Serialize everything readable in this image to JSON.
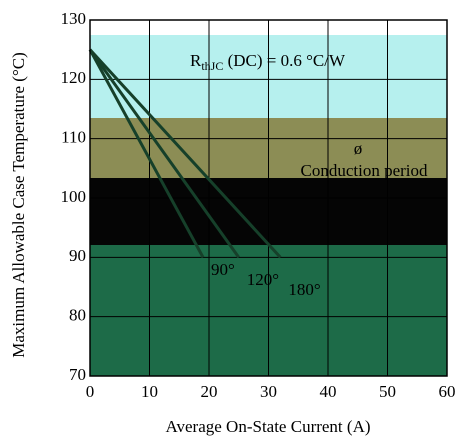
{
  "chart_data": {
    "type": "line",
    "x_label": "Average On-State Current (A)",
    "y_label": "Maximum Allowable Case Temperature (°C)",
    "annotations": {
      "rth_main": "R",
      "rth_sub": "thJC",
      "rth_rest": " (DC) = 0.6 °C/W",
      "phi": "ø",
      "conduction": "Conduction period"
    },
    "xlim": [
      0,
      60
    ],
    "ylim": [
      70,
      130
    ],
    "xticks": [
      0,
      10,
      20,
      30,
      40,
      50,
      60
    ],
    "yticks": [
      70,
      80,
      90,
      100,
      110,
      120,
      130
    ],
    "grid": true,
    "series": [
      {
        "name": "90°",
        "color": "#16402a",
        "x": [
          0,
          19
        ],
        "values": [
          125,
          90
        ]
      },
      {
        "name": "120°",
        "color": "#16402a",
        "x": [
          0,
          25
        ],
        "values": [
          125,
          90
        ]
      },
      {
        "name": "180°",
        "color": "#16402a",
        "x": [
          0,
          32
        ],
        "values": [
          125,
          90
        ]
      }
    ]
  }
}
